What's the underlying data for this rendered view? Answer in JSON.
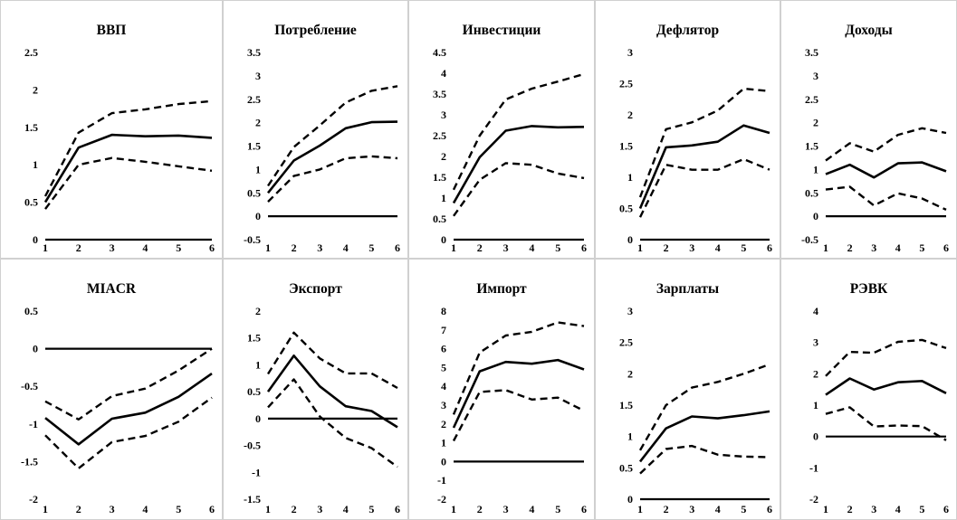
{
  "chart_data": [
    {
      "type": "line",
      "title": "ВВП",
      "x": [
        1,
        2,
        3,
        4,
        5,
        6
      ],
      "ylim": [
        0,
        2.5
      ],
      "yticks": [
        "0",
        "0.5",
        "1",
        "1.5",
        "2",
        "2.5"
      ],
      "series": [
        {
          "role": "response",
          "style": "solid",
          "values": [
            0.5,
            1.23,
            1.4,
            1.38,
            1.39,
            1.36
          ]
        },
        {
          "role": "upper",
          "style": "dashed",
          "values": [
            0.58,
            1.43,
            1.69,
            1.74,
            1.81,
            1.85
          ]
        },
        {
          "role": "lower",
          "style": "dashed",
          "values": [
            0.41,
            1.0,
            1.09,
            1.04,
            0.98,
            0.92
          ]
        },
        {
          "role": "zero",
          "style": "solid",
          "values": [
            0,
            0,
            0,
            0,
            0,
            0
          ]
        }
      ]
    },
    {
      "type": "line",
      "title": "Потребление",
      "x": [
        1,
        2,
        3,
        4,
        5,
        6
      ],
      "ylim": [
        -0.5,
        3.5
      ],
      "yticks": [
        "-0.5",
        "0",
        "0.5",
        "1",
        "1.5",
        "2",
        "2.5",
        "3",
        "3.5"
      ],
      "series": [
        {
          "role": "response",
          "style": "solid",
          "values": [
            0.5,
            1.19,
            1.51,
            1.88,
            2.01,
            2.02
          ]
        },
        {
          "role": "upper",
          "style": "dashed",
          "values": [
            0.65,
            1.48,
            1.94,
            2.43,
            2.68,
            2.78
          ]
        },
        {
          "role": "lower",
          "style": "dashed",
          "values": [
            0.31,
            0.86,
            1.0,
            1.24,
            1.28,
            1.24
          ]
        },
        {
          "role": "zero",
          "style": "solid",
          "values": [
            0,
            0,
            0,
            0,
            0,
            0
          ]
        }
      ]
    },
    {
      "type": "line",
      "title": "Инвестиции",
      "x": [
        1,
        2,
        3,
        4,
        5,
        6
      ],
      "ylim": [
        0,
        4.5
      ],
      "yticks": [
        "0",
        "0.5",
        "1",
        "1.5",
        "2",
        "2.5",
        "3",
        "3.5",
        "4",
        "4.5"
      ],
      "series": [
        {
          "role": "response",
          "style": "solid",
          "values": [
            0.88,
            1.98,
            2.62,
            2.73,
            2.7,
            2.71
          ]
        },
        {
          "role": "upper",
          "style": "dashed",
          "values": [
            1.2,
            2.5,
            3.37,
            3.63,
            3.8,
            3.98
          ]
        },
        {
          "role": "lower",
          "style": "dashed",
          "values": [
            0.57,
            1.44,
            1.84,
            1.8,
            1.59,
            1.48
          ]
        },
        {
          "role": "zero",
          "style": "solid",
          "values": [
            0,
            0,
            0,
            0,
            0,
            0
          ]
        }
      ]
    },
    {
      "type": "line",
      "title": "Дефлятор",
      "x": [
        1,
        2,
        3,
        4,
        5,
        6
      ],
      "ylim": [
        0,
        3
      ],
      "yticks": [
        "0",
        "0.5",
        "1",
        "1.5",
        "2",
        "2.5",
        "3"
      ],
      "series": [
        {
          "role": "response",
          "style": "solid",
          "values": [
            0.5,
            1.48,
            1.51,
            1.57,
            1.83,
            1.71
          ]
        },
        {
          "role": "upper",
          "style": "dashed",
          "values": [
            0.68,
            1.77,
            1.88,
            2.07,
            2.42,
            2.38
          ]
        },
        {
          "role": "lower",
          "style": "dashed",
          "values": [
            0.36,
            1.2,
            1.12,
            1.12,
            1.29,
            1.12
          ]
        },
        {
          "role": "zero",
          "style": "solid",
          "values": [
            0,
            0,
            0,
            0,
            0,
            0
          ]
        }
      ]
    },
    {
      "type": "line",
      "title": "Доходы",
      "x": [
        1,
        2,
        3,
        4,
        5,
        6
      ],
      "ylim": [
        -0.5,
        3.5
      ],
      "yticks": [
        "-0.5",
        "0",
        "0.5",
        "1",
        "1.5",
        "2",
        "2.5",
        "3",
        "3.5"
      ],
      "series": [
        {
          "role": "response",
          "style": "solid",
          "values": [
            0.9,
            1.1,
            0.83,
            1.13,
            1.15,
            0.96
          ]
        },
        {
          "role": "upper",
          "style": "dashed",
          "values": [
            1.19,
            1.56,
            1.38,
            1.74,
            1.88,
            1.78
          ]
        },
        {
          "role": "lower",
          "style": "dashed",
          "values": [
            0.57,
            0.63,
            0.23,
            0.49,
            0.38,
            0.14
          ]
        },
        {
          "role": "zero",
          "style": "solid",
          "values": [
            0,
            0,
            0,
            0,
            0,
            0
          ]
        }
      ]
    },
    {
      "type": "line",
      "title": "MIACR",
      "x": [
        1,
        2,
        3,
        4,
        5,
        6
      ],
      "ylim": [
        -2,
        0.5
      ],
      "yticks": [
        "-2",
        "-1.5",
        "-1",
        "-0.5",
        "0",
        "0.5"
      ],
      "series": [
        {
          "role": "response",
          "style": "solid",
          "values": [
            -0.92,
            -1.27,
            -0.93,
            -0.85,
            -0.64,
            -0.33
          ]
        },
        {
          "role": "upper",
          "style": "dashed",
          "values": [
            -0.7,
            -0.94,
            -0.63,
            -0.53,
            -0.29,
            0.0
          ]
        },
        {
          "role": "lower",
          "style": "dashed",
          "values": [
            -1.15,
            -1.59,
            -1.24,
            -1.16,
            -0.97,
            -0.65
          ]
        },
        {
          "role": "zero",
          "style": "solid",
          "values": [
            0,
            0,
            0,
            0,
            0,
            0
          ]
        }
      ]
    },
    {
      "type": "line",
      "title": "Экспорт",
      "x": [
        1,
        2,
        3,
        4,
        5,
        6
      ],
      "ylim": [
        -1.5,
        2
      ],
      "yticks": [
        "-1.5",
        "-1",
        "-0.5",
        "0",
        "0.5",
        "1",
        "1.5",
        "2"
      ],
      "series": [
        {
          "role": "response",
          "style": "solid",
          "values": [
            0.5,
            1.17,
            0.6,
            0.23,
            0.14,
            -0.16
          ]
        },
        {
          "role": "upper",
          "style": "dashed",
          "values": [
            0.83,
            1.6,
            1.12,
            0.84,
            0.84,
            0.57
          ]
        },
        {
          "role": "lower",
          "style": "dashed",
          "values": [
            0.21,
            0.73,
            0.04,
            -0.36,
            -0.55,
            -0.9
          ]
        },
        {
          "role": "zero",
          "style": "solid",
          "values": [
            0,
            0,
            0,
            0,
            0,
            0
          ]
        }
      ]
    },
    {
      "type": "line",
      "title": "Импорт",
      "x": [
        1,
        2,
        3,
        4,
        5,
        6
      ],
      "ylim": [
        -2,
        8
      ],
      "yticks": [
        "-2",
        "-1",
        "0",
        "1",
        "2",
        "3",
        "4",
        "5",
        "6",
        "7",
        "8"
      ],
      "series": [
        {
          "role": "response",
          "style": "solid",
          "values": [
            1.8,
            4.8,
            5.3,
            5.2,
            5.4,
            4.9
          ]
        },
        {
          "role": "upper",
          "style": "dashed",
          "values": [
            2.5,
            5.8,
            6.7,
            6.9,
            7.4,
            7.2
          ]
        },
        {
          "role": "lower",
          "style": "dashed",
          "values": [
            1.1,
            3.7,
            3.8,
            3.3,
            3.4,
            2.7
          ]
        },
        {
          "role": "zero",
          "style": "solid",
          "values": [
            0,
            0,
            0,
            0,
            0,
            0
          ]
        }
      ]
    },
    {
      "type": "line",
      "title": "Зарплаты",
      "x": [
        1,
        2,
        3,
        4,
        5,
        6
      ],
      "ylim": [
        0,
        3
      ],
      "yticks": [
        "0",
        "0.5",
        "1",
        "1.5",
        "2",
        "2.5",
        "3"
      ],
      "series": [
        {
          "role": "response",
          "style": "solid",
          "values": [
            0.6,
            1.13,
            1.32,
            1.29,
            1.34,
            1.4
          ]
        },
        {
          "role": "upper",
          "style": "dashed",
          "values": [
            0.78,
            1.5,
            1.78,
            1.87,
            2.0,
            2.15
          ]
        },
        {
          "role": "lower",
          "style": "dashed",
          "values": [
            0.41,
            0.8,
            0.85,
            0.71,
            0.68,
            0.67
          ]
        },
        {
          "role": "zero",
          "style": "solid",
          "values": [
            0,
            0,
            0,
            0,
            0,
            0
          ]
        }
      ]
    },
    {
      "type": "line",
      "title": "РЭВК",
      "x": [
        1,
        2,
        3,
        4,
        5,
        6
      ],
      "ylim": [
        -2,
        4
      ],
      "yticks": [
        "-2",
        "-1",
        "0",
        "1",
        "2",
        "3",
        "4"
      ],
      "series": [
        {
          "role": "response",
          "style": "solid",
          "values": [
            1.33,
            1.85,
            1.5,
            1.73,
            1.77,
            1.38
          ]
        },
        {
          "role": "upper",
          "style": "dashed",
          "values": [
            1.93,
            2.7,
            2.67,
            3.02,
            3.08,
            2.82
          ]
        },
        {
          "role": "lower",
          "style": "dashed",
          "values": [
            0.72,
            0.93,
            0.32,
            0.35,
            0.33,
            -0.12
          ]
        },
        {
          "role": "zero",
          "style": "solid",
          "values": [
            0,
            0,
            0,
            0,
            0,
            0
          ]
        }
      ]
    }
  ]
}
